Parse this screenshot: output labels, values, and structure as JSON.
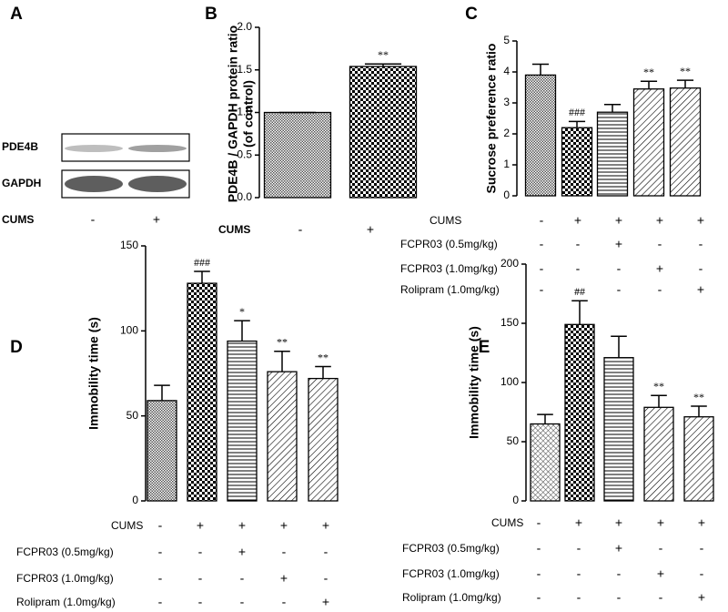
{
  "chart_data": [
    {
      "type": "blot",
      "panel": "A",
      "rows": [
        "PDE4B",
        "GAPDH"
      ],
      "group_label": "CUMS",
      "groups": [
        "-",
        "+"
      ]
    },
    {
      "type": "bar",
      "panel": "B",
      "ylabel": [
        "PDE4B / GAPDH protein ratio",
        "(of control)"
      ],
      "category_label": "CUMS",
      "categories": [
        "-",
        "+"
      ],
      "values": [
        1.0,
        1.54
      ],
      "errors": [
        0,
        0.03
      ],
      "annotations": [
        null,
        "**"
      ],
      "ylim": [
        0,
        2
      ],
      "yticks": [
        {
          "value": 0,
          "label": "0.0"
        },
        0.5,
        {
          "value": 1,
          "label": "1.0"
        },
        1.5,
        {
          "value": 2,
          "label": "2.0"
        }
      ]
    },
    {
      "type": "bar",
      "panel": "C",
      "ylabel": [
        "Sucrose preference ratio"
      ],
      "treatments": [
        {
          "label": "CUMS",
          "signs": [
            "-",
            "+",
            "+",
            "+",
            "+"
          ]
        },
        {
          "label": "FCPR03 (0.5mg/kg)",
          "signs": [
            "-",
            "-",
            "+",
            "-",
            "-"
          ]
        },
        {
          "label": "FCPR03 (1.0mg/kg)",
          "signs": [
            "-",
            "-",
            "-",
            "+",
            "-"
          ]
        },
        {
          "label": "Rolipram (1.0mg/kg)",
          "signs": [
            "-",
            "-",
            "-",
            "-",
            "+"
          ]
        }
      ],
      "values": [
        3.9,
        2.2,
        2.7,
        3.45,
        3.48
      ],
      "errors": [
        0.35,
        0.2,
        0.25,
        0.25,
        0.25
      ],
      "annotations": [
        null,
        "###",
        null,
        "**",
        "**"
      ],
      "ylim": [
        0,
        5
      ],
      "yticks": [
        0,
        1,
        2,
        3,
        4,
        5
      ]
    },
    {
      "type": "bar",
      "panel": "D",
      "ylabel": [
        "Immobility time (s)"
      ],
      "treatments": [
        {
          "label": "CUMS",
          "signs": [
            "-",
            "+",
            "+",
            "+",
            "+"
          ]
        },
        {
          "label": "FCPR03 (0.5mg/kg)",
          "signs": [
            "-",
            "-",
            "+",
            "-",
            "-"
          ]
        },
        {
          "label": "FCPR03 (1.0mg/kg)",
          "signs": [
            "-",
            "-",
            "-",
            "+",
            "-"
          ]
        },
        {
          "label": "Rolipram (1.0mg/kg)",
          "signs": [
            "-",
            "-",
            "-",
            "-",
            "+"
          ]
        }
      ],
      "values": [
        59,
        128,
        94,
        76,
        72
      ],
      "errors": [
        9,
        7,
        12,
        12,
        7
      ],
      "annotations": [
        null,
        "###",
        "*",
        "**",
        "**"
      ],
      "ylim": [
        0,
        150
      ],
      "yticks": [
        0,
        50,
        100,
        150
      ]
    },
    {
      "type": "bar",
      "panel": "E",
      "ylabel": [
        "Immobility time (s)"
      ],
      "treatments": [
        {
          "label": "CUMS",
          "signs": [
            "-",
            "+",
            "+",
            "+",
            "+"
          ]
        },
        {
          "label": "FCPR03 (0.5mg/kg)",
          "signs": [
            "-",
            "-",
            "+",
            "-",
            "-"
          ]
        },
        {
          "label": "FCPR03 (1.0mg/kg)",
          "signs": [
            "-",
            "-",
            "-",
            "+",
            "-"
          ]
        },
        {
          "label": "Rolipram (1.0mg/kg)",
          "signs": [
            "-",
            "-",
            "-",
            "-",
            "+"
          ]
        }
      ],
      "values": [
        65,
        149,
        121,
        79,
        71
      ],
      "errors": [
        8,
        20,
        18,
        10,
        9
      ],
      "annotations": [
        null,
        "##",
        null,
        "**",
        "**"
      ],
      "ylim": [
        0,
        200
      ],
      "yticks": [
        0,
        50,
        100,
        150,
        200
      ]
    }
  ]
}
